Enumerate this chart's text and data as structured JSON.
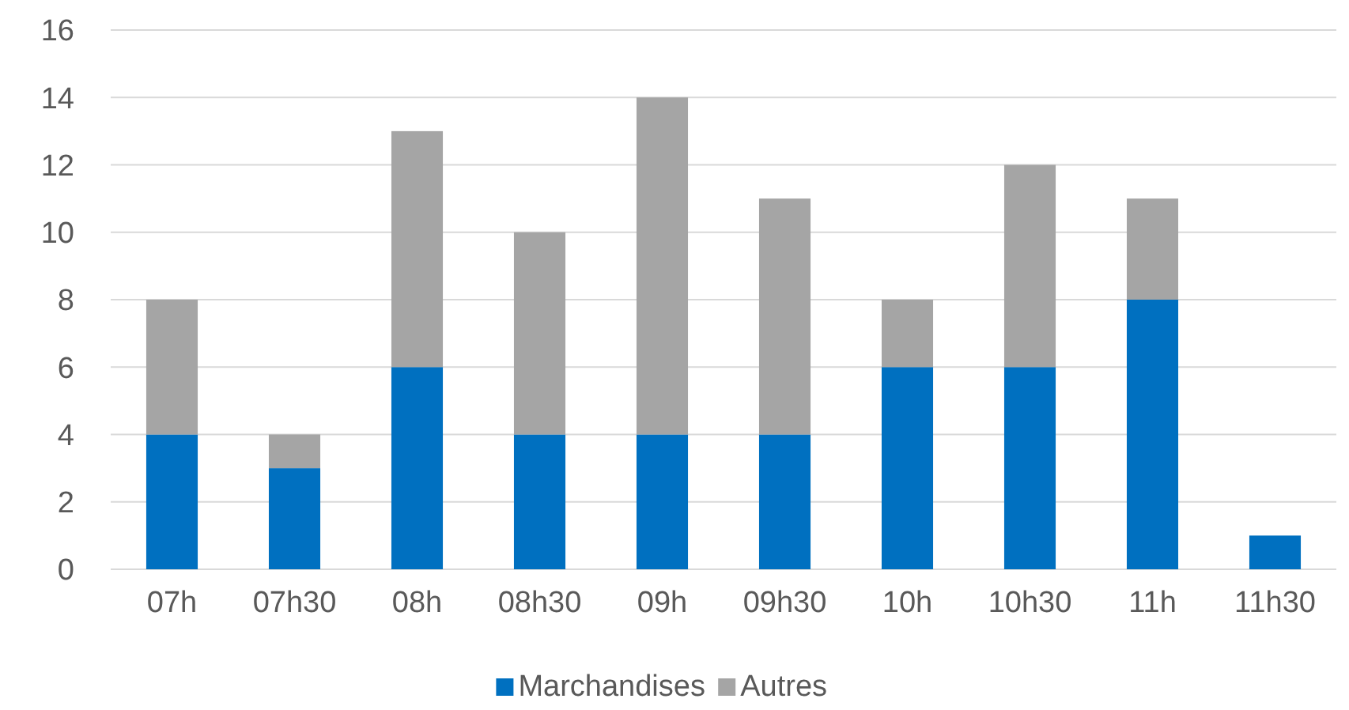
{
  "chart_data": {
    "type": "bar",
    "stacked": true,
    "categories": [
      "07h",
      "07h30",
      "08h",
      "08h30",
      "09h",
      "09h30",
      "10h",
      "10h30",
      "11h",
      "11h30"
    ],
    "series": [
      {
        "name": "Marchandises",
        "color": "#0070c0",
        "values": [
          4,
          3,
          6,
          4,
          4,
          4,
          6,
          6,
          8,
          1
        ]
      },
      {
        "name": "Autres",
        "color": "#a5a5a5",
        "values": [
          4,
          1,
          7,
          6,
          10,
          7,
          2,
          6,
          3,
          null
        ]
      }
    ],
    "ylim": [
      0,
      16
    ],
    "yticks": [
      0,
      2,
      4,
      6,
      8,
      10,
      12,
      14,
      16
    ],
    "grid": "y",
    "legend": "bottom"
  }
}
